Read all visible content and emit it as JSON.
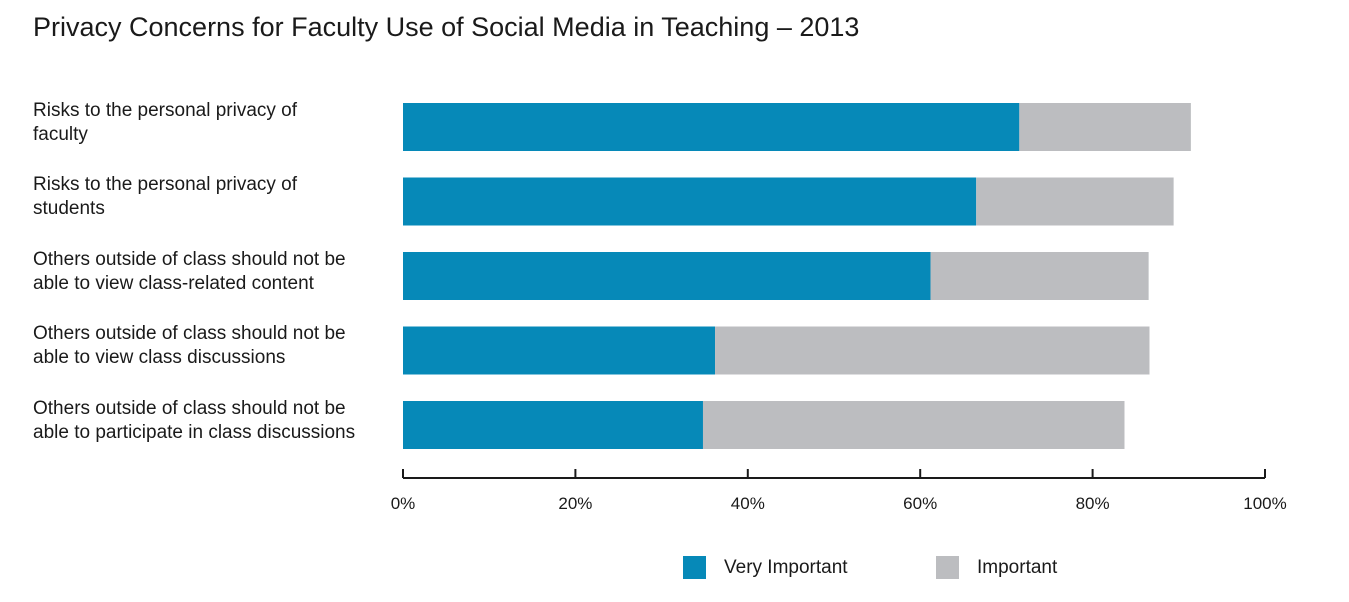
{
  "chart_data": {
    "type": "bar",
    "orientation": "horizontal",
    "stacked": true,
    "title": "Privacy Concerns for Faculty Use of Social Media in Teaching – 2013",
    "categories": [
      "Risks to the personal privacy of faculty",
      "Risks to the personal privacy of students",
      "Others outside of class should not be able to view class-related content",
      "Others outside of class should not be able to view class discussions",
      "Others outside of class should not be able to participate in class discussions"
    ],
    "category_lines": [
      [
        "Risks to the personal privacy of",
        "faculty"
      ],
      [
        "Risks to the personal privacy of",
        "students"
      ],
      [
        "Others outside of class should not be",
        "able to view class-related content"
      ],
      [
        "Others outside of class should not be",
        "able to view class discussions"
      ],
      [
        "Others outside of class should not be",
        "able to participate in class discussions"
      ]
    ],
    "series": [
      {
        "name": "Very Important",
        "color": "#0689b8",
        "values": [
          71.5,
          66.5,
          61.2,
          36.2,
          34.8
        ]
      },
      {
        "name": "Important",
        "color": "#bcbdc0",
        "values": [
          19.9,
          22.9,
          25.3,
          50.4,
          48.9
        ]
      }
    ],
    "xlim": [
      0,
      100
    ],
    "xticks": [
      "0%",
      "20%",
      "40%",
      "60%",
      "80%",
      "100%"
    ],
    "grid": false,
    "legend_position": "bottom"
  }
}
